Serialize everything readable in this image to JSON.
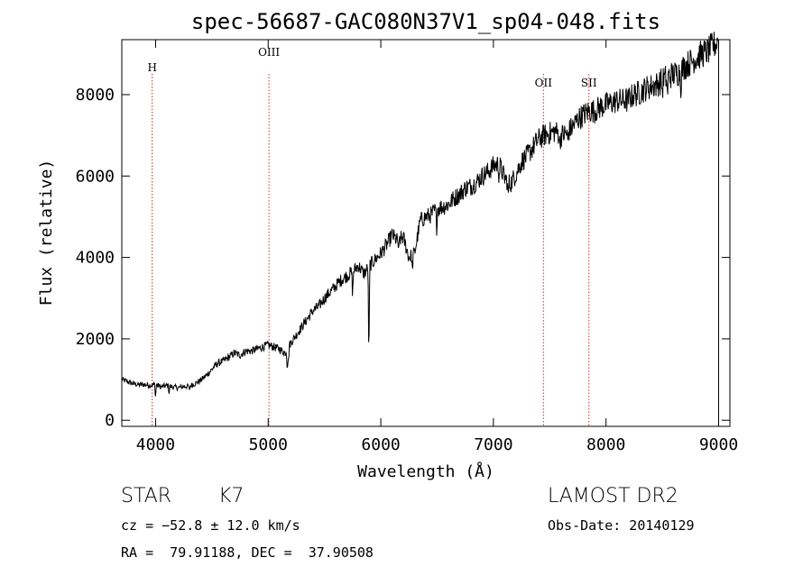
{
  "chart_data": {
    "type": "line",
    "title": "spec-56687-GAC080N37V1_sp04-048.fits",
    "xlabel": "Wavelength (Å)",
    "ylabel": "Flux (relative)",
    "xlim": [
      3700,
      9100
    ],
    "ylim": [
      -150,
      9350
    ],
    "x_ticks": [
      4000,
      5000,
      6000,
      7000,
      8000,
      9000
    ],
    "y_ticks": [
      0,
      2000,
      4000,
      6000,
      8000
    ],
    "grid": false,
    "line_color": "#000000",
    "marker_color": "#cc3333",
    "series": [
      {
        "x": [
          3700,
          3750,
          3800,
          3850,
          3900,
          3950,
          4000,
          4050,
          4100,
          4150,
          4200,
          4250,
          4300,
          4350,
          4400,
          4450,
          4500,
          4550,
          4600,
          4650,
          4700,
          4750,
          4800,
          4850,
          4900,
          4950,
          5000,
          5050,
          5100,
          5150,
          5200,
          5250,
          5300,
          5350,
          5400,
          5450,
          5500,
          5550,
          5600,
          5650,
          5700,
          5750,
          5800,
          5850,
          5900,
          5950,
          6000,
          6050,
          6100,
          6150,
          6200,
          6250,
          6300,
          6350,
          6400,
          6450,
          6500,
          6550,
          6600,
          6650,
          6700,
          6750,
          6800,
          6850,
          6900,
          6950,
          7000,
          7050,
          7100,
          7150,
          7200,
          7250,
          7300,
          7350,
          7400,
          7450,
          7500,
          7550,
          7600,
          7650,
          7700,
          7750,
          7800,
          7850,
          7900,
          7950,
          8000,
          8050,
          8100,
          8150,
          8200,
          8250,
          8300,
          8350,
          8400,
          8450,
          8500,
          8550,
          8600,
          8650,
          8700,
          8750,
          8800,
          8850,
          8900,
          8950,
          9000
        ],
        "y": [
          1000,
          950,
          900,
          870,
          880,
          860,
          880,
          820,
          850,
          820,
          800,
          830,
          840,
          900,
          980,
          1100,
          1250,
          1400,
          1450,
          1550,
          1650,
          1600,
          1700,
          1700,
          1750,
          1800,
          1850,
          1800,
          1750,
          1650,
          1900,
          2100,
          2300,
          2500,
          2700,
          2800,
          3000,
          3150,
          3300,
          3450,
          3550,
          3650,
          3800,
          3600,
          3800,
          3950,
          4100,
          4300,
          4550,
          4400,
          4500,
          4000,
          4100,
          4900,
          5000,
          5050,
          5200,
          5250,
          5300,
          5450,
          5550,
          5700,
          5750,
          5850,
          6000,
          6100,
          6250,
          6300,
          5950,
          5800,
          6050,
          6350,
          6500,
          6700,
          6900,
          7000,
          7050,
          7100,
          7000,
          7050,
          7200,
          7400,
          7500,
          7600,
          7600,
          7700,
          7750,
          7800,
          7850,
          7850,
          7900,
          8000,
          8050,
          8150,
          8200,
          8250,
          8350,
          8450,
          8500,
          8550,
          8700,
          8800,
          8900,
          9000,
          9050,
          9200,
          9300
        ]
      }
    ],
    "line_markers": [
      {
        "label": "H",
        "x": 3970
      },
      {
        "label": "OIII",
        "x": 5007
      },
      {
        "label": "OII",
        "x": 7444
      },
      {
        "label": "SII",
        "x": 7848
      }
    ]
  },
  "info": {
    "object_class": "STAR",
    "subclass": "K7",
    "survey": "LAMOST DR2",
    "cz": "cz = −52.8 ± 12.0 km/s",
    "obs_date": "Obs-Date: 20140129",
    "coords": "RA =  79.91188, DEC =  37.90508"
  }
}
